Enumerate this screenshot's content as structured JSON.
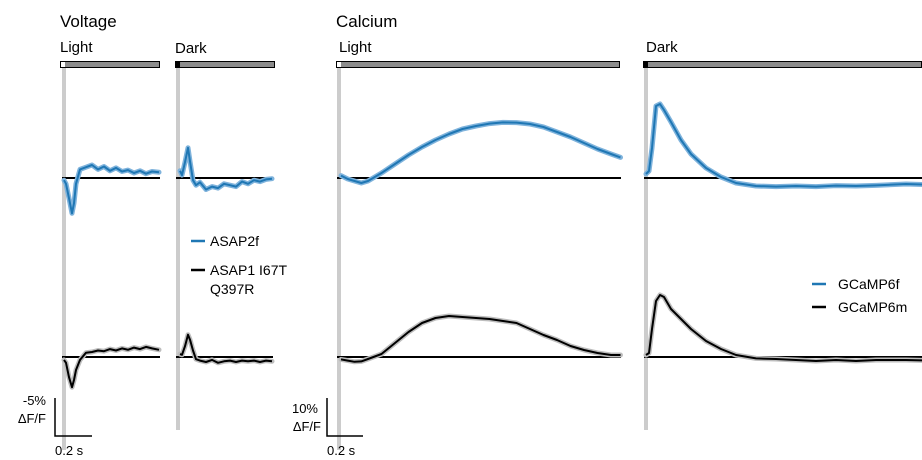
{
  "colors": {
    "blue": "#1f77b4",
    "blue_band": "#7fb3dc",
    "black": "#000000",
    "gray_band": "#bdbdbd",
    "stim_bar": "#8c8c8c",
    "onset_line": "#cccccc"
  },
  "chart_data": [
    {
      "type": "line",
      "title": "Voltage",
      "panels": [
        {
          "label": "Light",
          "series": [
            {
              "name": "ASAP2f",
              "x": [
                0,
                0.02,
                0.05,
                0.08,
                0.1,
                0.12,
                0.16,
                0.22,
                0.28,
                0.34,
                0.4,
                0.46,
                0.52,
                0.58,
                0.64,
                0.7,
                0.76,
                0.82,
                0.88,
                0.95
              ],
              "y": [
                -0.3,
                -0.8,
                -2.8,
                -4.9,
                -3.5,
                -0.8,
                1.2,
                1.5,
                1.8,
                1.2,
                1.6,
                1.0,
                1.4,
                0.9,
                1.1,
                0.7,
                1.0,
                0.6,
                0.9,
                0.8
              ]
            },
            {
              "name": "ASAP1 I67T Q397R",
              "x": [
                0,
                0.02,
                0.05,
                0.08,
                0.1,
                0.12,
                0.16,
                0.22,
                0.28,
                0.34,
                0.4,
                0.46,
                0.52,
                0.58,
                0.64,
                0.7,
                0.76,
                0.82,
                0.88,
                0.95
              ],
              "y": [
                -0.4,
                -0.8,
                -2.8,
                -4.2,
                -3.2,
                -1.8,
                -0.4,
                0.6,
                0.7,
                0.9,
                0.8,
                1.1,
                0.9,
                1.2,
                1.0,
                1.3,
                1.1,
                1.4,
                1.2,
                1.0
              ]
            }
          ]
        },
        {
          "label": "Dark",
          "series": [
            {
              "name": "ASAP2f",
              "x": [
                0,
                0.02,
                0.05,
                0.08,
                0.1,
                0.13,
                0.16,
                0.2,
                0.26,
                0.32,
                0.38,
                0.44,
                0.5,
                0.56,
                0.62,
                0.68,
                0.74,
                0.8,
                0.86,
                0.92
              ],
              "y": [
                1.0,
                0.4,
                2.2,
                4.2,
                2.3,
                -0.3,
                -1.0,
                -0.6,
                -1.6,
                -1.2,
                -1.4,
                -0.8,
                -1.0,
                -1.2,
                -0.5,
                -0.8,
                -0.3,
                -0.5,
                -0.2,
                -0.1
              ]
            },
            {
              "name": "ASAP1 I67T Q397R",
              "x": [
                0,
                0.02,
                0.05,
                0.08,
                0.1,
                0.13,
                0.16,
                0.2,
                0.26,
                0.32,
                0.38,
                0.44,
                0.5,
                0.56,
                0.62,
                0.68,
                0.74,
                0.8,
                0.86,
                0.92
              ],
              "y": [
                0.4,
                0.3,
                1.5,
                3.1,
                2.4,
                0.9,
                -0.3,
                -0.5,
                -0.7,
                -0.4,
                -0.8,
                -0.6,
                -0.5,
                -0.7,
                -0.5,
                -0.6,
                -0.5,
                -0.7,
                -0.5,
                -0.6
              ]
            }
          ]
        }
      ],
      "legend": [
        "ASAP2f",
        "ASAP1 I67T",
        "Q397R"
      ],
      "scale_bar": {
        "y_label": [
          "-5%",
          "ΔF/F"
        ],
        "x_label": "0.2 s"
      }
    },
    {
      "type": "line",
      "title": "Calcium",
      "panels": [
        {
          "label": "Light",
          "series": [
            {
              "name": "GCaMP6f",
              "x": [
                0,
                0.05,
                0.1,
                0.15,
                0.2,
                0.3,
                0.4,
                0.5,
                0.6,
                0.7,
                0.8,
                0.9,
                1.0,
                1.1,
                1.2,
                1.3,
                1.4,
                1.5,
                1.6,
                1.7,
                1.8,
                1.9,
                2.0,
                2.07
              ],
              "y": [
                1.2,
                -0.5,
                -1.5,
                -2.5,
                -1.5,
                2.5,
                7.0,
                11.5,
                15.5,
                19.0,
                22.0,
                24.5,
                26.0,
                27.2,
                27.8,
                27.7,
                27.0,
                25.5,
                23.0,
                20.5,
                17.5,
                14.5,
                12.0,
                10.3
              ]
            },
            {
              "name": "GCaMP6m",
              "x": [
                0,
                0.05,
                0.1,
                0.15,
                0.2,
                0.3,
                0.4,
                0.5,
                0.6,
                0.7,
                0.8,
                0.9,
                1.0,
                1.1,
                1.2,
                1.3,
                1.4,
                1.5,
                1.6,
                1.7,
                1.8,
                1.9,
                2.0,
                2.07
              ],
              "y": [
                -1.2,
                -1.8,
                -2.4,
                -2.2,
                -1.0,
                1.5,
                7.0,
                12.5,
                17.0,
                19.5,
                20.5,
                20.0,
                19.5,
                19.0,
                18.0,
                17.0,
                14.0,
                11.0,
                8.5,
                5.5,
                3.5,
                2.0,
                1.0,
                1.0
              ]
            }
          ]
        },
        {
          "label": "Dark",
          "series": [
            {
              "name": "GCaMP6f",
              "x": [
                0,
                0.03,
                0.06,
                0.1,
                0.14,
                0.18,
                0.25,
                0.35,
                0.45,
                0.6,
                0.75,
                0.9,
                1.1,
                1.3,
                1.5,
                1.7,
                1.9,
                2.1,
                2.3,
                2.6,
                2.9
              ],
              "y": [
                2.0,
                3.5,
                15.0,
                36.0,
                37.0,
                34.0,
                28.0,
                19.0,
                12.0,
                5.0,
                0.5,
                -2.5,
                -4.0,
                -4.3,
                -4.0,
                -4.3,
                -3.8,
                -4.0,
                -3.7,
                -3.0,
                -3.5
              ]
            },
            {
              "name": "GCaMP6m",
              "x": [
                0,
                0.03,
                0.06,
                0.1,
                0.14,
                0.18,
                0.25,
                0.35,
                0.45,
                0.6,
                0.75,
                0.9,
                1.1,
                1.3,
                1.5,
                1.7,
                1.9,
                2.1,
                2.3,
                2.6,
                2.9
              ],
              "y": [
                1.0,
                2.0,
                14.0,
                28.0,
                31.0,
                30.0,
                24.0,
                19.0,
                14.0,
                8.0,
                4.0,
                1.0,
                -0.7,
                -1.0,
                -1.5,
                -2.0,
                -1.5,
                -2.0,
                -1.5,
                -1.5,
                -1.8
              ]
            }
          ]
        }
      ],
      "legend": [
        "GCaMP6f",
        "GCaMP6m"
      ],
      "scale_bar": {
        "y_label": [
          "10%",
          "ΔF/F"
        ],
        "x_label": "0.2 s"
      }
    }
  ]
}
